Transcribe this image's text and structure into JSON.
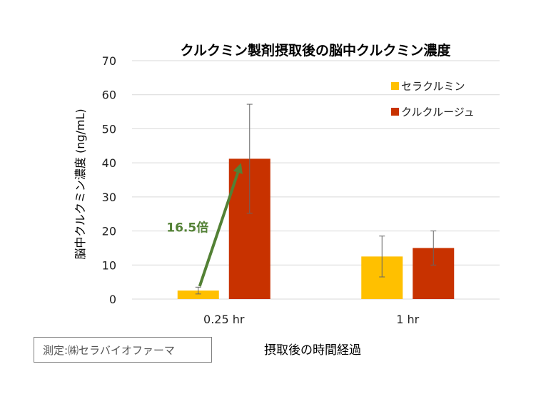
{
  "chart_data": {
    "type": "bar",
    "title": "クルクミン製剤摂取後の脳中クルクミン濃度",
    "xlabel": "摂取後の時間経過",
    "ylabel": "脳中クルクミン濃度 (ng/mL)",
    "ylim": [
      0,
      70
    ],
    "yticks": [
      0,
      10,
      20,
      30,
      40,
      50,
      60,
      70
    ],
    "grid": true,
    "legend_position": "top-right",
    "categories": [
      "0.25 hr",
      "1 hr"
    ],
    "series": [
      {
        "name": "セラクルミン",
        "color": "#ffc000",
        "values": [
          2.5,
          12.5
        ],
        "errors": [
          1.0,
          6.0
        ]
      },
      {
        "name": "クルクルージュ",
        "color": "#c83200",
        "values": [
          41.2,
          15.0
        ],
        "errors": [
          16.0,
          5.0
        ]
      }
    ],
    "annotation": {
      "text": "16.5倍",
      "color": "#538135"
    }
  },
  "note": "測定:㈱セラバイオファーマ"
}
